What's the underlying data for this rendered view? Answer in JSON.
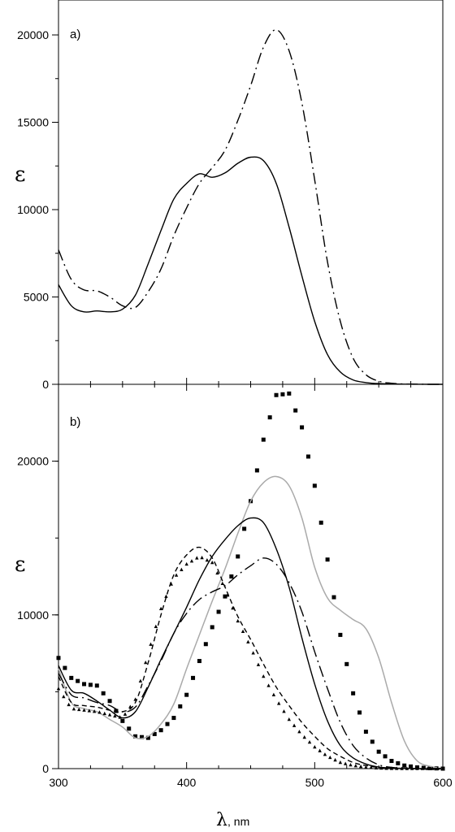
{
  "chart_data": [
    {
      "type": "line",
      "panel_label": "a)",
      "ylabel": "ε",
      "xlim": [
        300,
        600
      ],
      "ylim": [
        0,
        22000
      ],
      "yticks": [
        0,
        5000,
        10000,
        15000,
        20000
      ],
      "x": [
        300,
        310,
        320,
        330,
        340,
        350,
        360,
        370,
        380,
        390,
        400,
        410,
        420,
        430,
        440,
        450,
        460,
        470,
        480,
        490,
        500,
        510,
        520,
        530,
        540,
        550,
        560,
        570,
        580,
        590,
        600
      ],
      "series": [
        {
          "style": "solid",
          "values": [
            5700,
            4500,
            4150,
            4200,
            4150,
            4300,
            5100,
            6900,
            8800,
            10600,
            11500,
            12050,
            11850,
            12100,
            12650,
            13000,
            12800,
            11500,
            9000,
            6200,
            3600,
            1700,
            700,
            250,
            100,
            40,
            20,
            10,
            5,
            0,
            0
          ]
        },
        {
          "style": "dash-dot",
          "values": [
            7700,
            6000,
            5400,
            5350,
            5000,
            4500,
            4400,
            5300,
            6600,
            8500,
            10100,
            11500,
            12400,
            13400,
            15100,
            17100,
            19300,
            20300,
            19100,
            16100,
            11700,
            7000,
            3600,
            1500,
            550,
            180,
            60,
            20,
            10,
            0,
            0
          ]
        }
      ]
    },
    {
      "type": "line",
      "panel_label": "b)",
      "ylabel": "ε",
      "xlabel_symbol": "λ",
      "xlabel_unit": ", nm",
      "xlim": [
        300,
        600
      ],
      "ylim": [
        0,
        25000
      ],
      "yticks": [
        0,
        10000,
        20000
      ],
      "xticks": [
        300,
        400,
        500,
        600
      ],
      "x": [
        300,
        310,
        320,
        330,
        340,
        350,
        360,
        370,
        380,
        390,
        400,
        410,
        420,
        430,
        440,
        450,
        460,
        470,
        480,
        490,
        500,
        510,
        520,
        530,
        540,
        550,
        560,
        570,
        580,
        590,
        600
      ],
      "series": [
        {
          "style": "squares",
          "values": [
            7200,
            5900,
            5500,
            5400,
            4400,
            3100,
            2100,
            2000,
            2500,
            3300,
            4800,
            7000,
            9200,
            11200,
            13800,
            17400,
            21400,
            24300,
            24400,
            22200,
            18400,
            13600,
            8700,
            4900,
            2400,
            1100,
            500,
            200,
            80,
            30,
            0
          ]
        },
        {
          "style": "solid-gray",
          "values": [
            6500,
            4300,
            3900,
            3700,
            3200,
            2700,
            2000,
            2100,
            2900,
            4200,
            6500,
            8700,
            10900,
            13000,
            15300,
            17400,
            18600,
            19000,
            18400,
            16300,
            13100,
            11100,
            10300,
            9700,
            9100,
            7200,
            4300,
            1800,
            500,
            150,
            0
          ]
        },
        {
          "style": "solid",
          "values": [
            6700,
            5100,
            4900,
            4400,
            3800,
            3300,
            3700,
            5300,
            7100,
            8800,
            10500,
            12300,
            13800,
            14900,
            15800,
            16300,
            16000,
            14300,
            11800,
            8500,
            5500,
            3100,
            1500,
            700,
            300,
            100,
            40,
            20,
            0,
            0,
            0
          ]
        },
        {
          "style": "dash-dot",
          "values": [
            6200,
            4800,
            4600,
            4300,
            4100,
            3700,
            4000,
            5400,
            7000,
            8800,
            10100,
            11000,
            11500,
            11900,
            12600,
            13200,
            13700,
            13300,
            12100,
            10200,
            7600,
            5200,
            3000,
            1500,
            700,
            250,
            80,
            30,
            0,
            0,
            0
          ]
        },
        {
          "style": "dashed",
          "values": [
            6000,
            4300,
            4100,
            4000,
            3800,
            3700,
            4300,
            6900,
            10000,
            12600,
            13900,
            14400,
            13700,
            11800,
            9900,
            8400,
            6800,
            5300,
            4100,
            3000,
            2100,
            1300,
            800,
            400,
            200,
            80,
            30,
            10,
            0,
            0,
            0
          ]
        },
        {
          "style": "triangles",
          "values": [
            5200,
            3900,
            3800,
            3700,
            3500,
            3300,
            4500,
            7500,
            10400,
            12400,
            13300,
            13800,
            13400,
            11700,
            9600,
            7900,
            6000,
            4500,
            3200,
            2200,
            1400,
            800,
            400,
            200,
            90,
            30,
            10,
            0,
            0,
            0,
            0
          ]
        }
      ]
    }
  ]
}
